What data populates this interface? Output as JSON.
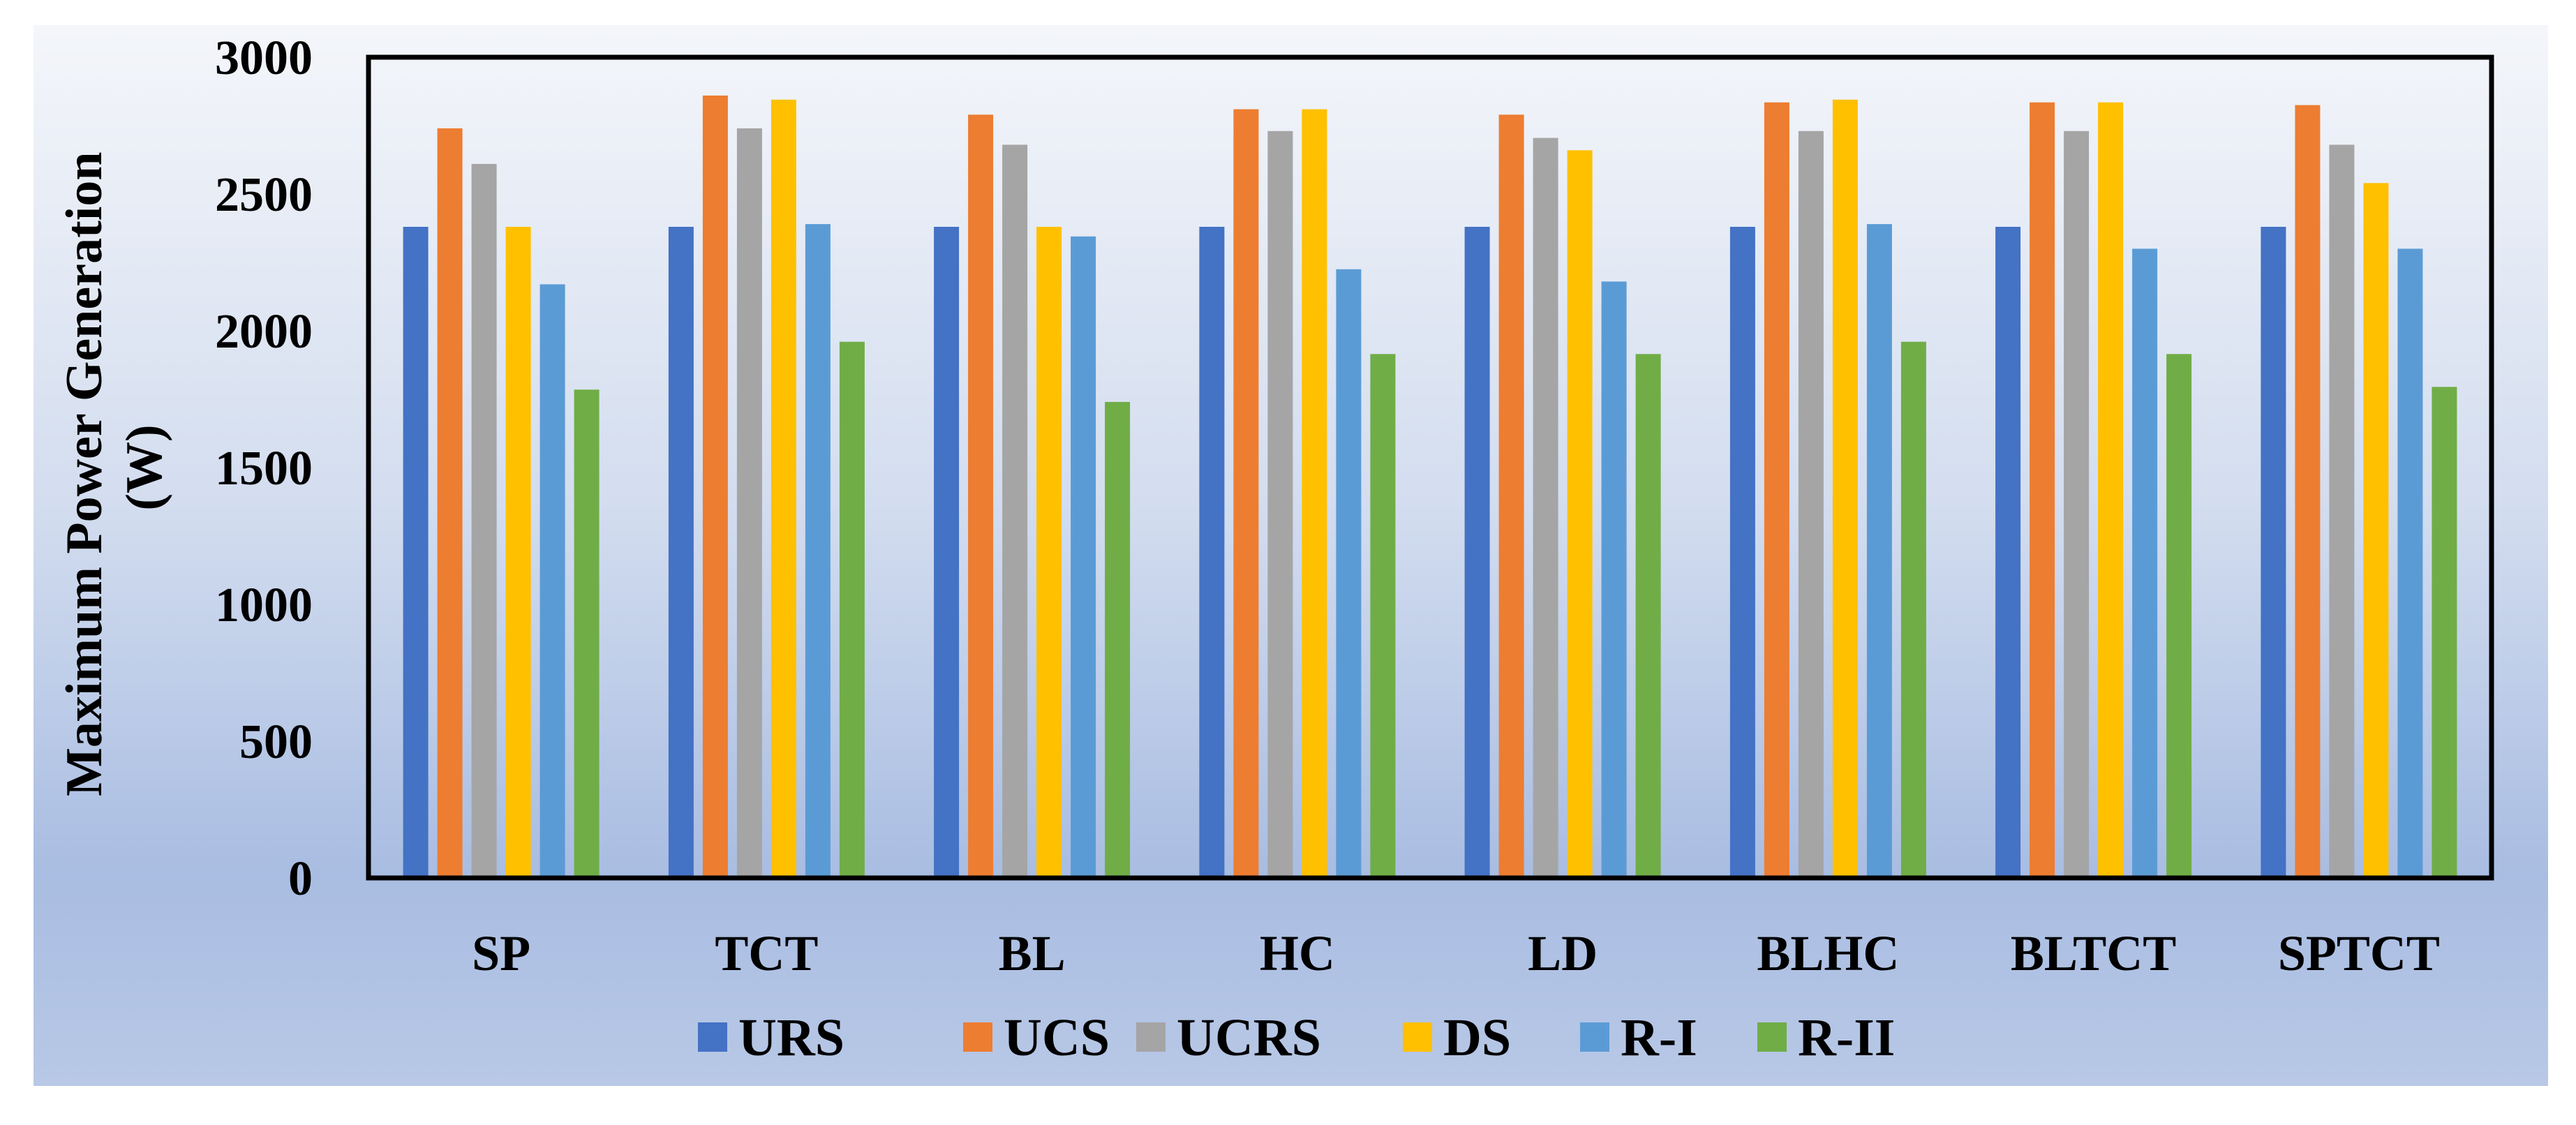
{
  "chart_data": {
    "type": "bar",
    "title": "",
    "xlabel": "",
    "ylabel": [
      "Maximum Power Generation",
      "(W)"
    ],
    "ylim": [
      0,
      3000
    ],
    "yticks": [
      "0",
      "500",
      "1000",
      "1500",
      "2000",
      "2500",
      "3000"
    ],
    "ytick_values": [
      0,
      500,
      1000,
      1500,
      2000,
      2500,
      3000
    ],
    "grid": false,
    "legend_position": "bottom",
    "categories": [
      "SP",
      "TCT",
      "BL",
      "HC",
      "LD",
      "BLHC",
      "BLTCT",
      "SPTCT"
    ],
    "series": [
      {
        "name": "URS",
        "color": "#4472C4",
        "values": [
          2380,
          2380,
          2380,
          2380,
          2380,
          2380,
          2380,
          2380
        ]
      },
      {
        "name": "UCS",
        "color": "#ED7D31",
        "values": [
          2740,
          2860,
          2790,
          2810,
          2790,
          2835,
          2835,
          2825
        ]
      },
      {
        "name": "UCRS",
        "color": "#A5A5A5",
        "values": [
          2610,
          2740,
          2680,
          2730,
          2705,
          2730,
          2730,
          2680
        ]
      },
      {
        "name": "DS",
        "color": "#FFC000",
        "values": [
          2380,
          2845,
          2380,
          2810,
          2660,
          2845,
          2835,
          2540
        ]
      },
      {
        "name": "R-I",
        "color": "#5B9BD5",
        "values": [
          2170,
          2390,
          2345,
          2225,
          2180,
          2390,
          2300,
          2300
        ]
      },
      {
        "name": "R-II",
        "color": "#70AD47",
        "values": [
          1785,
          1960,
          1740,
          1915,
          1915,
          1960,
          1915,
          1795
        ]
      }
    ]
  }
}
